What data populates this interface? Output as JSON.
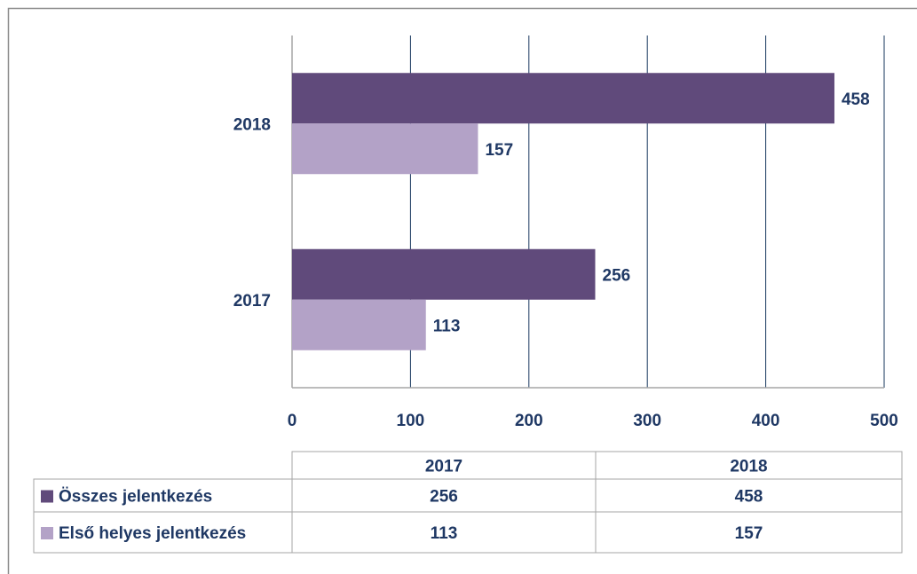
{
  "chart_data": {
    "type": "bar",
    "orientation": "horizontal",
    "categories": [
      "2017",
      "2018"
    ],
    "series": [
      {
        "name": "Összes jelentkezés",
        "color": "#604a7b",
        "values": [
          256,
          458
        ]
      },
      {
        "name": "Első helyes jelentkezés",
        "color": "#b3a2c7",
        "values": [
          113,
          157
        ]
      }
    ],
    "xlim": [
      0,
      500
    ],
    "xticks": [
      0,
      100,
      200,
      300,
      400,
      500
    ],
    "grid": true,
    "data_labels": true,
    "data_table": true
  }
}
